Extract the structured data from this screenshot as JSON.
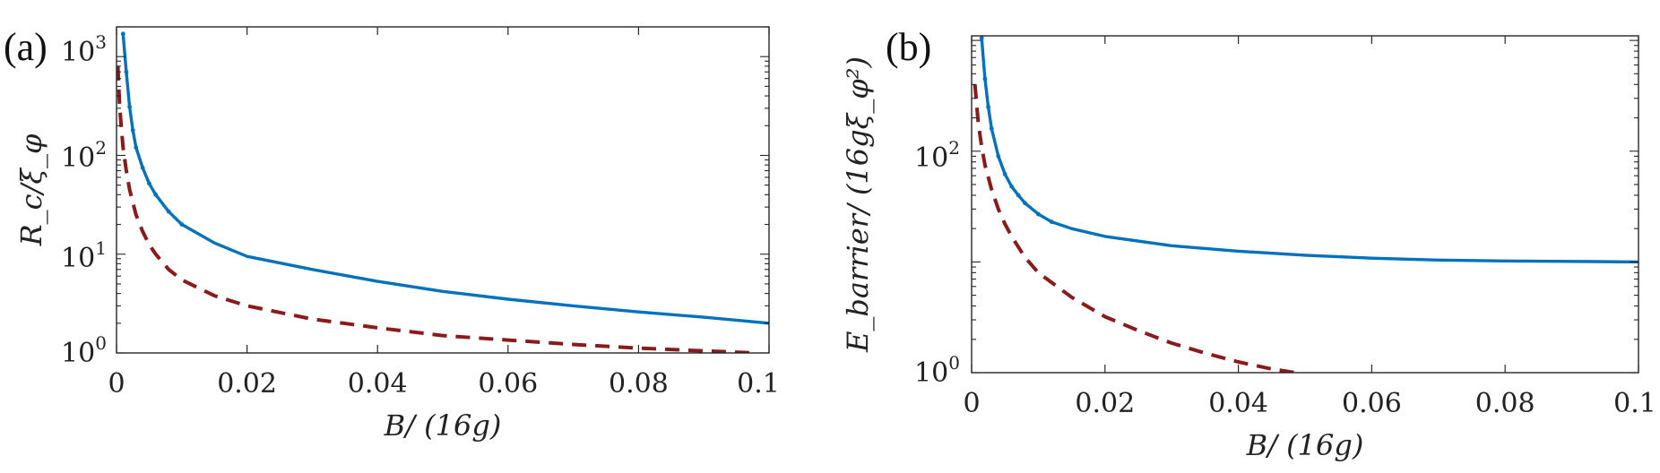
{
  "chart_data": [
    {
      "type": "line",
      "panel_label": "(a)",
      "xlabel": "B/ (16g)",
      "ylabel": "R_c/ξ_φ",
      "yscale": "log",
      "xlim": [
        0,
        0.1
      ],
      "ylim": [
        1,
        2000
      ],
      "x_ticks": [
        0,
        0.02,
        0.04,
        0.06,
        0.08,
        0.1
      ],
      "x_tick_labels": [
        "0",
        "0.02",
        "0.04",
        "0.06",
        "0.08",
        "0.1"
      ],
      "y_ticks": [
        1,
        10,
        100,
        1000
      ],
      "y_tick_labels": [
        [
          "10",
          "0"
        ],
        [
          "10",
          "1"
        ],
        [
          "10",
          "2"
        ],
        [
          "10",
          "3"
        ]
      ],
      "series": [
        {
          "name": "solid",
          "color": "#0072bd",
          "style": "solid-dotted",
          "x": [
            0.001,
            0.0015,
            0.002,
            0.0025,
            0.003,
            0.004,
            0.005,
            0.006,
            0.008,
            0.01,
            0.015,
            0.02,
            0.03,
            0.04,
            0.05,
            0.06,
            0.07,
            0.08,
            0.09,
            0.1
          ],
          "y": [
            1700,
            700,
            310,
            180,
            120,
            75,
            52,
            40,
            27,
            20,
            13,
            9.5,
            7,
            5.3,
            4.2,
            3.5,
            3.0,
            2.6,
            2.3,
            2.0
          ]
        },
        {
          "name": "dashed",
          "color": "#8b1a1a",
          "style": "dashed",
          "x": [
            0.0002,
            0.0005,
            0.001,
            0.0015,
            0.002,
            0.003,
            0.004,
            0.005,
            0.006,
            0.008,
            0.01,
            0.015,
            0.02,
            0.03,
            0.04,
            0.05,
            0.06,
            0.07,
            0.08,
            0.09,
            0.098
          ],
          "y": [
            800,
            300,
            120,
            70,
            45,
            25,
            17,
            12.5,
            10,
            7,
            5.5,
            3.8,
            3.0,
            2.2,
            1.8,
            1.5,
            1.35,
            1.22,
            1.12,
            1.05,
            1.0
          ]
        }
      ]
    },
    {
      "type": "line",
      "panel_label": "(b)",
      "xlabel": "B/ (16g)",
      "ylabel": "E_barrier/ (16gξ_φ²)",
      "yscale": "log",
      "xlim": [
        0,
        0.1
      ],
      "ylim": [
        1,
        1100
      ],
      "x_ticks": [
        0,
        0.02,
        0.04,
        0.06,
        0.08,
        0.1
      ],
      "x_tick_labels": [
        "0",
        "0.02",
        "0.04",
        "0.06",
        "0.08",
        "0.1"
      ],
      "y_ticks": [
        1,
        100
      ],
      "y_tick_labels": [
        [
          "10",
          "0"
        ],
        [
          "10",
          "2"
        ]
      ],
      "series": [
        {
          "name": "solid",
          "color": "#0072bd",
          "style": "solid-dotted",
          "x": [
            0.0015,
            0.002,
            0.0025,
            0.003,
            0.004,
            0.005,
            0.006,
            0.007,
            0.008,
            0.01,
            0.012,
            0.015,
            0.02,
            0.03,
            0.04,
            0.05,
            0.06,
            0.07,
            0.08,
            0.09,
            0.1
          ],
          "y": [
            1050,
            450,
            250,
            160,
            90,
            62,
            48,
            40,
            34,
            27,
            23,
            20,
            17,
            14,
            12.5,
            11.5,
            10.8,
            10.4,
            10.2,
            10.1,
            10.0
          ]
        },
        {
          "name": "dashed",
          "color": "#8b1a1a",
          "style": "dashed",
          "x": [
            0.0005,
            0.001,
            0.0015,
            0.002,
            0.003,
            0.004,
            0.005,
            0.006,
            0.008,
            0.01,
            0.015,
            0.02,
            0.025,
            0.03,
            0.035,
            0.04,
            0.045,
            0.0485
          ],
          "y": [
            400,
            180,
            110,
            75,
            45,
            30,
            22,
            17,
            11,
            8,
            4.8,
            3.2,
            2.4,
            1.85,
            1.5,
            1.25,
            1.08,
            1.0
          ]
        }
      ]
    }
  ],
  "colors": {
    "axis": "#262626",
    "solid_series": "#0072bd",
    "dashed_series": "#8b1a1a"
  }
}
